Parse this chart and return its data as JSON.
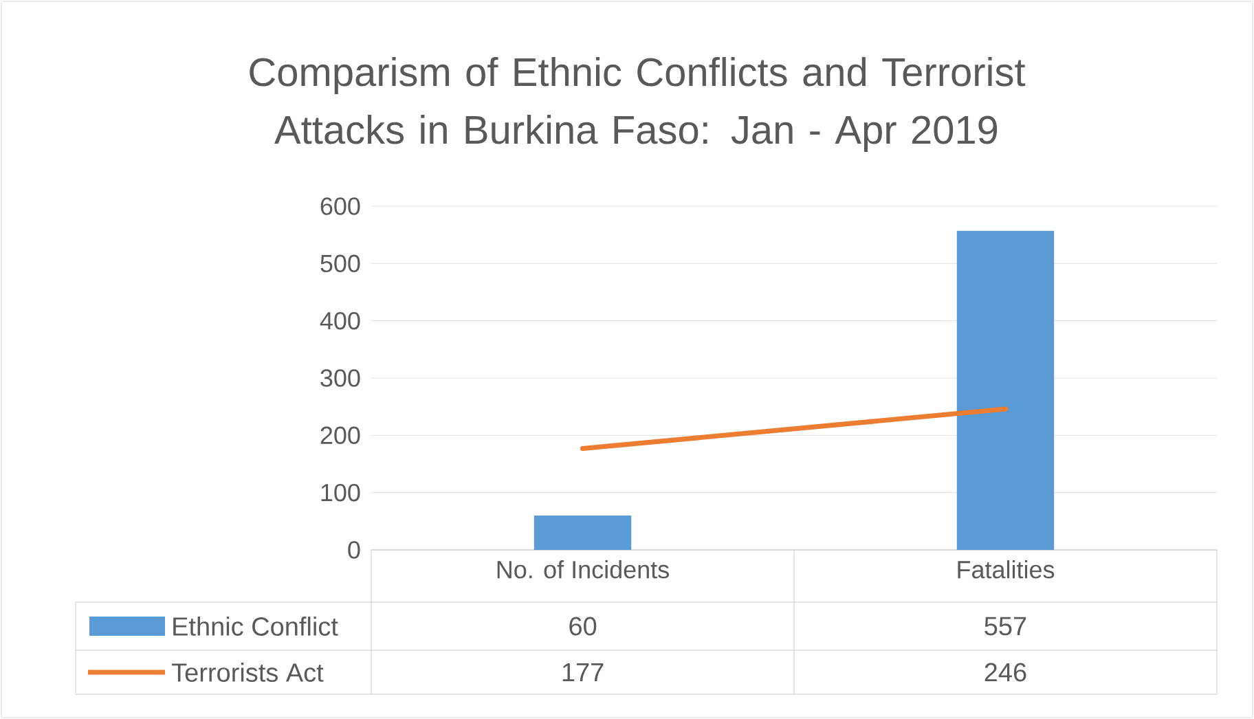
{
  "chart_data": {
    "type": "bar",
    "title": "Comparism of Ethnic Conflicts and Terrorist Attacks in Burkina Faso: Jan - Apr 2019",
    "categories": [
      "No. of Incidents",
      "Fatalities"
    ],
    "series": [
      {
        "name": "Ethnic Conflict",
        "color": "#5b9bd5",
        "values": [
          60,
          557
        ]
      },
      {
        "name": "Terrorists Act",
        "type": "line",
        "color": "#ed7d31",
        "values": [
          177,
          246
        ]
      }
    ],
    "ylim": [
      0,
      600
    ],
    "yticks": [
      0,
      100,
      200,
      300,
      400,
      500,
      600
    ],
    "grid": "y",
    "legend": "bottom",
    "data_labels": true
  }
}
